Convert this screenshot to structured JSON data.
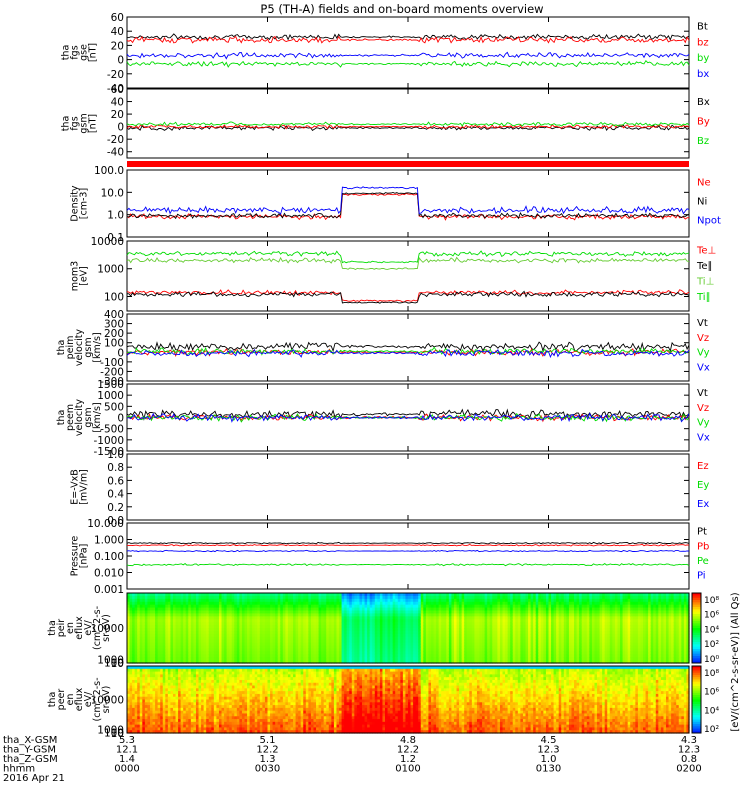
{
  "title": "P5 (TH-A) fields and on-board moments overview",
  "colors": {
    "black": "#000000",
    "red": "#ff0000",
    "green": "#00dd00",
    "blue": "#0000ff",
    "ltgreen": "#66cc33"
  },
  "chart_data": [
    {
      "id": "fgs_gse",
      "type": "line",
      "ylabel": [
        "tha",
        "fgs",
        "gse",
        "[nT]"
      ],
      "ylim": [
        -40,
        60
      ],
      "yticks": [
        "60",
        "40",
        "20",
        "0",
        "-20",
        "-40"
      ],
      "ytick_values": [
        60,
        40,
        20,
        0,
        -20,
        -40
      ],
      "series": [
        {
          "name": "Bt",
          "color": "black",
          "level": 32,
          "noise": 5
        },
        {
          "name": "bz",
          "color": "red",
          "level": 28,
          "noise": 6
        },
        {
          "name": "by",
          "color": "green",
          "level": -6,
          "noise": 5
        },
        {
          "name": "bx",
          "color": "blue",
          "level": 6,
          "noise": 5
        }
      ]
    },
    {
      "id": "fgs_gsm",
      "type": "line",
      "ylabel": [
        "tha",
        "fgs",
        "gsm",
        "[nT]"
      ],
      "ylim": [
        -50,
        60
      ],
      "yticks": [
        "60",
        "40",
        "20",
        "0",
        "-20",
        "-40"
      ],
      "ytick_values": [
        60,
        40,
        20,
        0,
        -20,
        -40
      ],
      "series": [
        {
          "name": "Bx",
          "color": "black",
          "level": -2,
          "noise": 5
        },
        {
          "name": "By",
          "color": "red",
          "level": 0,
          "noise": 4
        },
        {
          "name": "Bz",
          "color": "green",
          "level": 4,
          "noise": 4
        }
      ]
    },
    {
      "id": "density",
      "type": "line",
      "scale": "log",
      "ylabel": [
        "Density",
        "[cm-3]"
      ],
      "ylim": [
        0.1,
        100
      ],
      "yticks": [
        "100.0",
        "10.0",
        "1.0",
        "0.1"
      ],
      "ytick_values": [
        100,
        10,
        1,
        0.1
      ],
      "series": [
        {
          "name": "Ne",
          "color": "red",
          "level": 0.8,
          "noise": 0.4
        },
        {
          "name": "Ni",
          "color": "black",
          "level": 0.9,
          "noise": 0.4
        },
        {
          "name": "Npot",
          "color": "blue",
          "level": 1.6,
          "noise": 0.5
        }
      ]
    },
    {
      "id": "temperature",
      "type": "line",
      "scale": "log",
      "ylabel": [
        "mom3",
        "[eV]"
      ],
      "ylim": [
        30,
        10000
      ],
      "yticks": [
        "10000",
        "1000",
        "100"
      ],
      "ytick_values": [
        10000,
        1000,
        100
      ],
      "series": [
        {
          "name": "Te⊥",
          "color": "red",
          "level": 140,
          "noise": 0.3
        },
        {
          "name": "Te∥",
          "color": "black",
          "level": 120,
          "noise": 0.3
        },
        {
          "name": "Ti⊥",
          "color": "ltgreen",
          "level": 2000,
          "noise": 0.3
        },
        {
          "name": "Ti∥",
          "color": "green",
          "level": 3500,
          "noise": 0.3
        }
      ]
    },
    {
      "id": "peim_velocity",
      "type": "line",
      "ylabel": [
        "tha",
        "peim",
        "velocity",
        "gsm",
        "[km/s]"
      ],
      "ylim": [
        -300,
        400
      ],
      "yticks": [
        "400",
        "300",
        "200",
        "100",
        "0",
        "-100",
        "-200",
        "-300"
      ],
      "ytick_values": [
        400,
        300,
        200,
        100,
        0,
        -100,
        -200,
        -300
      ],
      "series": [
        {
          "name": "Vt",
          "color": "black",
          "level": 60,
          "noise": 60
        },
        {
          "name": "Vz",
          "color": "red",
          "level": 0,
          "noise": 45
        },
        {
          "name": "Vy",
          "color": "green",
          "level": 10,
          "noise": 45
        },
        {
          "name": "Vx",
          "color": "blue",
          "level": -10,
          "noise": 50
        }
      ]
    },
    {
      "id": "peem_velocity",
      "type": "line",
      "ylabel": [
        "tha",
        "peem",
        "velocity",
        "gsm",
        "[km/s]"
      ],
      "ylim": [
        -1500,
        1500
      ],
      "yticks": [
        "1500",
        "1000",
        "500",
        "0",
        "-500",
        "-1000",
        "-1500"
      ],
      "ytick_values": [
        1500,
        1000,
        500,
        0,
        -500,
        -1000,
        -1500
      ],
      "series": [
        {
          "name": "Vt",
          "color": "black",
          "level": 150,
          "noise": 250
        },
        {
          "name": "Vz",
          "color": "red",
          "level": 0,
          "noise": 200
        },
        {
          "name": "Vy",
          "color": "green",
          "level": 0,
          "noise": 200
        },
        {
          "name": "Vx",
          "color": "blue",
          "level": 0,
          "noise": 220
        }
      ]
    },
    {
      "id": "efield",
      "type": "line",
      "ylabel": [
        "E=-VxB",
        "[mV/m]"
      ],
      "ylim": [
        0,
        1
      ],
      "yticks": [
        "1.0",
        "0.8",
        "0.6",
        "0.4",
        "0.2",
        "0.0"
      ],
      "ytick_values": [
        1,
        0.8,
        0.6,
        0.4,
        0.2,
        0
      ],
      "series": [
        {
          "name": "Ez",
          "color": "red"
        },
        {
          "name": "Ey",
          "color": "green"
        },
        {
          "name": "Ex",
          "color": "blue"
        }
      ]
    },
    {
      "id": "pressure",
      "type": "line",
      "scale": "log",
      "ylabel": [
        "Pressure",
        "[nPa]"
      ],
      "ylim": [
        0.001,
        10
      ],
      "yticks": [
        "10.000",
        "1.000",
        "0.100",
        "0.010",
        "0.001"
      ],
      "ytick_values": [
        10,
        1,
        0.1,
        0.01,
        0.001
      ],
      "series": [
        {
          "name": "Pt",
          "color": "black",
          "level": 0.6,
          "noise": 0.15
        },
        {
          "name": "Pb",
          "color": "red",
          "level": 0.45,
          "noise": 0.15
        },
        {
          "name": "Pe",
          "color": "green",
          "level": 0.03,
          "noise": 0.2
        },
        {
          "name": "Pi",
          "color": "blue",
          "level": 0.2,
          "noise": 0.15
        }
      ]
    },
    {
      "id": "peir_spec",
      "type": "heatmap",
      "ylabel": [
        "tha",
        "peir",
        "en",
        "eflux",
        "eV/",
        "(cm^2-s-",
        "sr-eV)"
      ],
      "ylim": [
        5,
        20000
      ],
      "yticks": [
        "10000",
        "1000",
        "100",
        "10"
      ],
      "ytick_values": [
        10000,
        1000,
        100,
        10
      ]
    },
    {
      "id": "peer_spec",
      "type": "heatmap",
      "ylabel": [
        "tha",
        "peer",
        "en",
        "eflux",
        "eV/",
        "(cm^2-s-",
        "sr-eV)"
      ],
      "ylim": [
        5,
        20000
      ],
      "yticks": [
        "10000",
        "1000",
        "100",
        "10"
      ],
      "ytick_values": [
        10000,
        1000,
        100,
        10
      ]
    }
  ],
  "colorbar": {
    "label": "[eV/(cm^2-s-sr-eV)] (All Qs)",
    "upper_ticks": [
      "10⁸",
      "10⁶",
      "10⁴",
      "10²",
      "10⁰"
    ],
    "lower_ticks": [
      "10⁸",
      "10⁶",
      "10⁴",
      "10²"
    ]
  },
  "annotations": {
    "row_labels": [
      "tha_X-GSM",
      "tha_Y-GSM",
      "tha_Z-GSM",
      "hhmm",
      "2016 Apr 21"
    ],
    "columns": [
      {
        "values": [
          "5.3",
          "12.1",
          "1.4",
          "0000"
        ]
      },
      {
        "values": [
          "5.1",
          "12.2",
          "1.3",
          "0030"
        ]
      },
      {
        "values": [
          "4.8",
          "12.2",
          "1.2",
          "0100"
        ]
      },
      {
        "values": [
          "4.5",
          "12.3",
          "1.0",
          "0130"
        ]
      },
      {
        "values": [
          "4.3",
          "12.3",
          "0.8",
          "0200"
        ]
      }
    ]
  }
}
